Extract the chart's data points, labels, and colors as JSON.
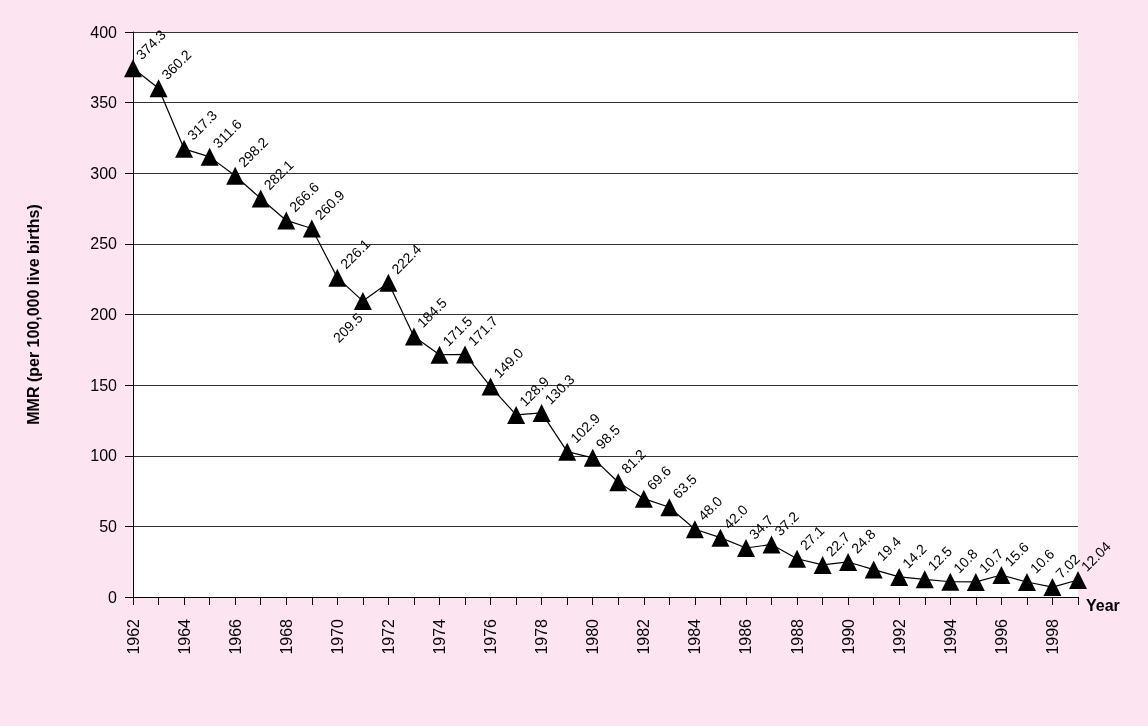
{
  "chart_data": {
    "type": "line",
    "xlabel": "Year",
    "ylabel": "MMR (per 100,000 live births)",
    "categories": [
      "1962",
      null,
      "1964",
      null,
      "1966",
      null,
      "1968",
      null,
      "1970",
      null,
      "1972",
      null,
      "1974",
      null,
      "1976",
      null,
      "1978",
      null,
      "1980",
      null,
      "1982",
      null,
      "1984",
      null,
      "1986",
      null,
      "1988",
      null,
      "1990",
      null,
      "1992",
      null,
      "1994",
      null,
      "1996",
      null,
      "1998",
      null
    ],
    "series": [
      {
        "color": "#000000",
        "values": [
          374.3,
          360.2,
          317.3,
          311.6,
          298.2,
          282.1,
          266.6,
          260.9,
          226.1,
          209.5,
          222.4,
          184.5,
          171.5,
          171.7,
          149.0,
          128.9,
          130.3,
          102.9,
          98.5,
          81.2,
          69.6,
          63.5,
          48.0,
          42.0,
          34.7,
          37.2,
          27.1,
          22.7,
          24.8,
          19.4,
          14.2,
          12.5,
          10.8,
          10.7,
          15.6,
          10.6,
          7.02,
          12.04
        ],
        "value_labels": [
          "374.3",
          "360.2",
          "317.3",
          "311.6",
          "298.2",
          "282.1",
          "266.6",
          "260.9",
          "226.1",
          "209.5",
          "222.4",
          "184.5",
          "171.5",
          "171.7",
          "149.0",
          "128.9",
          "130.3",
          "102.9",
          "98.5",
          "81.2",
          "69.6",
          "63.5",
          "48.0",
          "42.0",
          "34.7",
          "37.2",
          "27.1",
          "22.7",
          "24.8",
          "19.4",
          "14.2",
          "12.5",
          "10.8",
          "10.7",
          "15.6",
          "10.6",
          "7.02",
          "12.04"
        ]
      }
    ],
    "ylim": [
      0,
      400
    ],
    "yticks": [
      0,
      50,
      100,
      150,
      200,
      250,
      300,
      350,
      400
    ],
    "grid": "y",
    "marker": "triangle",
    "line_style": "solid"
  }
}
